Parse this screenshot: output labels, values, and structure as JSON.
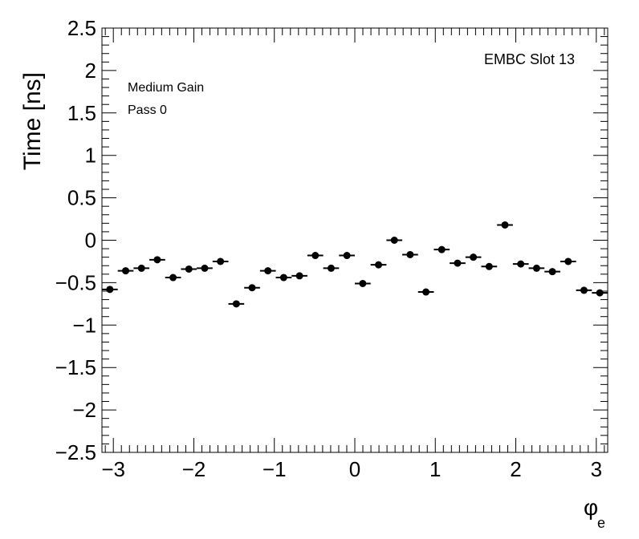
{
  "chart_data": {
    "type": "scatter",
    "ylabel": "Time [ns]",
    "xlabel": "φ",
    "xlabel_subscript": "e",
    "annotations": {
      "top_right": "EMBC Slot 13",
      "line1": "Medium Gain",
      "line2": "Pass 0"
    },
    "xlim": [
      -3.1416,
      3.1416
    ],
    "ylim": [
      -2.5,
      2.5
    ],
    "x_ticks": [
      -3,
      -2,
      -1,
      0,
      1,
      2,
      3
    ],
    "x_tick_labels": [
      "−3",
      "−2",
      "−1",
      "0",
      "1",
      "2",
      "3"
    ],
    "y_ticks": [
      -2.5,
      -2,
      -1.5,
      -1,
      -0.5,
      0,
      0.5,
      1,
      1.5,
      2,
      2.5
    ],
    "y_tick_labels": [
      "−2.5",
      "−2",
      "−1.5",
      "−1",
      "−0.5",
      "0",
      "0.5",
      "1",
      "1.5",
      "2",
      "2.5"
    ],
    "grid": false,
    "bin_count": 32,
    "x": [
      -3.0434,
      -2.8471,
      -2.6507,
      -2.4544,
      -2.258,
      -2.0617,
      -1.8653,
      -1.669,
      -1.4726,
      -1.2763,
      -1.0799,
      -0.8836,
      -0.6872,
      -0.4909,
      -0.2945,
      -0.0982,
      0.0982,
      0.2945,
      0.4909,
      0.6872,
      0.8836,
      1.0799,
      1.2763,
      1.4726,
      1.669,
      1.8653,
      2.0617,
      2.258,
      2.4544,
      2.6507,
      2.8471,
      3.0434
    ],
    "y": [
      -0.58,
      -0.36,
      -0.33,
      -0.23,
      -0.44,
      -0.34,
      -0.33,
      -0.25,
      -0.75,
      -0.56,
      -0.36,
      -0.44,
      -0.42,
      -0.18,
      -0.33,
      -0.18,
      -0.51,
      -0.29,
      0.0,
      -0.17,
      -0.61,
      -0.11,
      -0.27,
      -0.2,
      -0.31,
      0.18,
      -0.28,
      -0.33,
      -0.37,
      -0.25,
      -0.59,
      -0.62
    ]
  }
}
